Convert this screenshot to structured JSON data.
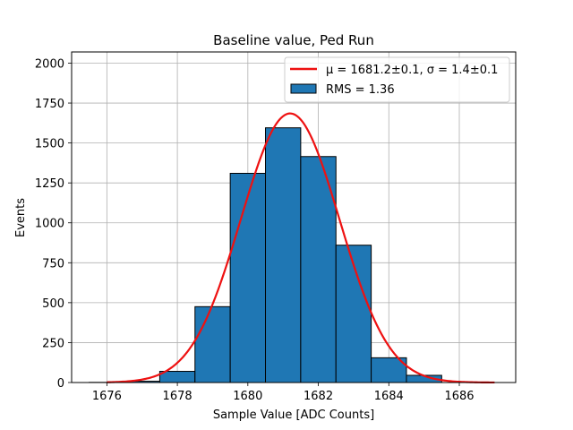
{
  "chart_data": {
    "type": "bar",
    "title": "Baseline value, Ped Run",
    "xlabel": "Sample Value [ADC Counts]",
    "ylabel": "Events",
    "xlim": [
      1675.0,
      1687.6
    ],
    "ylim": [
      0,
      2070
    ],
    "grid": true,
    "x_ticks": [
      1676,
      1678,
      1680,
      1682,
      1684,
      1686
    ],
    "x_tick_labels": [
      "1676",
      "1678",
      "1680",
      "1682",
      "1684",
      "1686"
    ],
    "y_ticks": [
      0,
      250,
      500,
      750,
      1000,
      1250,
      1500,
      1750,
      2000
    ],
    "y_tick_labels": [
      "0",
      "250",
      "500",
      "750",
      "1000",
      "1250",
      "1500",
      "1750",
      "2000"
    ],
    "histogram": {
      "name": "RMS = 1.36",
      "bin_edges": [
        1675.5,
        1676.5,
        1677.5,
        1678.5,
        1679.5,
        1680.5,
        1681.5,
        1682.5,
        1683.5,
        1684.5,
        1685.5
      ],
      "values": [
        1,
        8,
        70,
        475,
        1310,
        1595,
        1415,
        860,
        155,
        45
      ],
      "color": "#1f77b4",
      "edge_color": "#000000"
    },
    "fit": {
      "name": "$\\mu = 1681.2 \\pm 0.1$, $\\sigma = 1.4 \\pm 0.1$",
      "type": "gaussian",
      "mu": 1681.2,
      "sigma": 1.4,
      "amplitude": 1685,
      "x_range": [
        1676.0,
        1687.0
      ],
      "color": "#ee1111"
    },
    "legend": {
      "placement": "top-right",
      "entries": [
        {
          "label": "μ = 1681.2±0.1, σ = 1.4±0.1",
          "kind": "line",
          "color": "#ee1111"
        },
        {
          "label": "RMS = 1.36",
          "kind": "patch",
          "color": "#1f77b4"
        }
      ]
    }
  }
}
